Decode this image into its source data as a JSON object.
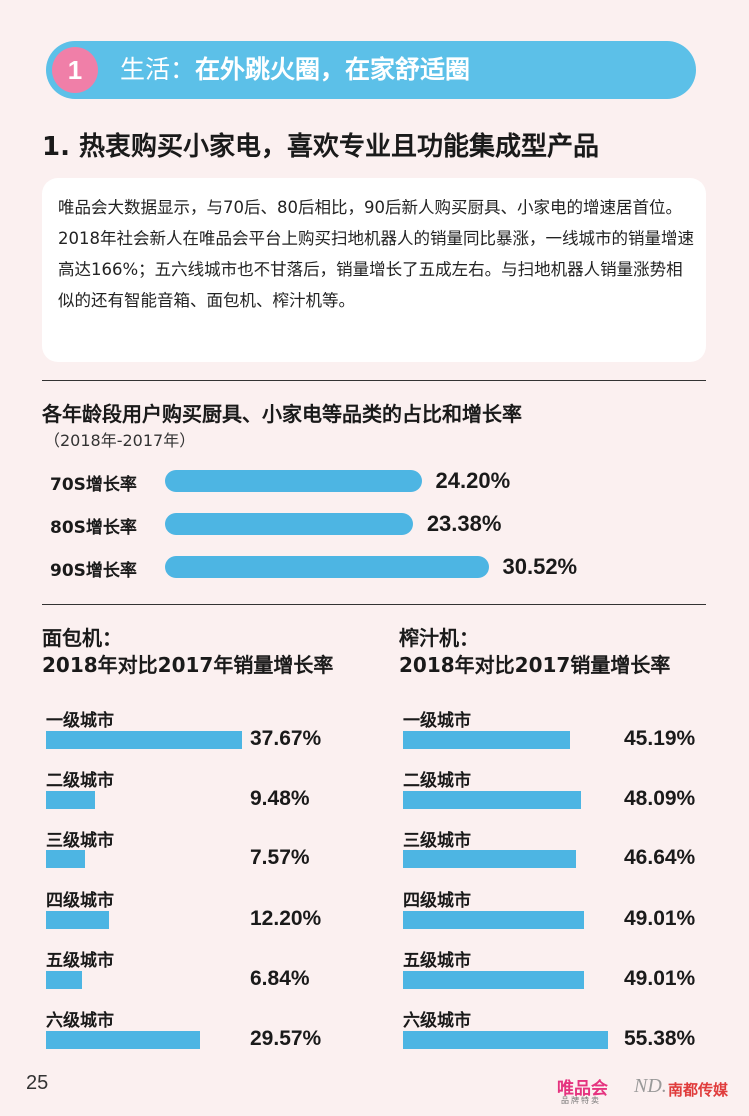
{
  "section": {
    "number": "1",
    "label": "生活：",
    "title": "在外跳火圈，在家舒适圈"
  },
  "heading": "1. 热衷购买小家电，喜欢专业且功能集成型产品",
  "intro_text": "唯品会大数据显示，与70后、80后相比，90后新人购买厨具、小家电的增速居首位。2018年社会新人在唯品会平台上购买扫地机器人的销量同比暴涨，一线城市的销量增速高达166%；五六线城市也不甘落后，销量增长了五成左右。与扫地机器人销量涨势相似的还有智能音箱、面包机、榨汁机等。",
  "chart_data": [
    {
      "type": "bar",
      "orientation": "horizontal",
      "title": "各年龄段用户购买厨具、小家电等品类的占比和增长率",
      "subtitle": "（2018年-2017年）",
      "categories": [
        "70S增长率",
        "80S增长率",
        "90S增长率"
      ],
      "values": [
        24.2,
        23.38,
        30.52
      ],
      "value_labels": [
        "24.20%",
        "23.38%",
        "30.52%"
      ],
      "color": "#4db5e3"
    },
    {
      "type": "bar",
      "orientation": "horizontal",
      "title_line1": "面包机：",
      "title_line2": "2018年对比2017年销量增长率",
      "categories": [
        "一级城市",
        "二级城市",
        "三级城市",
        "四级城市",
        "五级城市",
        "六级城市"
      ],
      "values": [
        37.67,
        9.48,
        7.57,
        12.2,
        6.84,
        29.57
      ],
      "value_labels": [
        "37.67%",
        "9.48%",
        "7.57%",
        "12.20%",
        "6.84%",
        "29.57%"
      ],
      "color": "#4db5e3"
    },
    {
      "type": "bar",
      "orientation": "horizontal",
      "title_line1": "榨汁机：",
      "title_line2": "2018年对比2017销量增长率",
      "categories": [
        "一级城市",
        "二级城市",
        "三级城市",
        "四级城市",
        "五级城市",
        "六级城市"
      ],
      "values": [
        45.19,
        48.09,
        46.64,
        49.01,
        49.01,
        55.38
      ],
      "value_labels": [
        "45.19%",
        "48.09%",
        "46.64%",
        "49.01%",
        "49.01%",
        "55.38%"
      ],
      "color": "#4db5e3"
    }
  ],
  "footer": {
    "page_number": "25",
    "brand1": "唯品会",
    "brand1_sub": "品牌特卖",
    "brand2_mark": "ND.",
    "brand2": "南都传媒"
  }
}
